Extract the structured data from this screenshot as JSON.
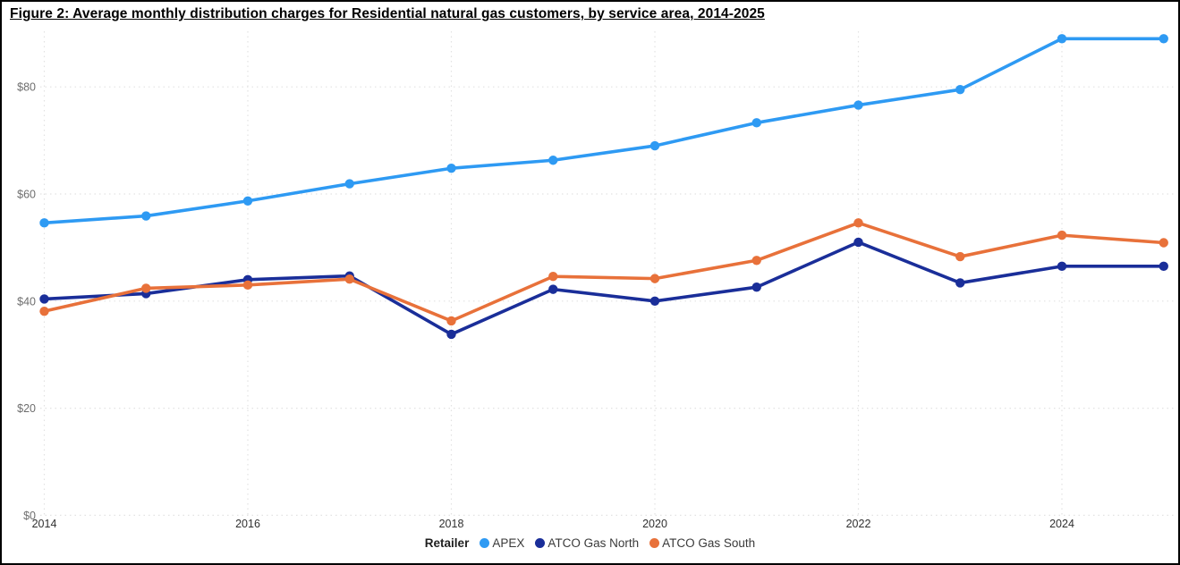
{
  "chart_data": {
    "type": "line",
    "title": "Figure 2: Average monthly distribution charges for Residential natural gas customers, by service area, 2014-2025",
    "x": [
      2014,
      2015,
      2016,
      2017,
      2018,
      2019,
      2020,
      2021,
      2022,
      2023,
      2024,
      2025
    ],
    "series": [
      {
        "name": "APEX",
        "color": "#2E9AF3",
        "values": [
          54.6,
          55.9,
          58.7,
          61.9,
          64.8,
          66.3,
          69.0,
          73.3,
          76.6,
          79.5,
          89.0,
          89.0
        ]
      },
      {
        "name": "ATCO Gas North",
        "color": "#1A2E99",
        "values": [
          40.4,
          41.4,
          44.0,
          44.7,
          33.8,
          42.2,
          40.0,
          42.6,
          51.0,
          43.4,
          46.5,
          46.5
        ]
      },
      {
        "name": "ATCO Gas South",
        "color": "#E8713A",
        "values": [
          38.1,
          42.4,
          43.0,
          44.1,
          36.3,
          44.6,
          44.2,
          47.6,
          54.6,
          48.3,
          52.3,
          50.9
        ]
      }
    ],
    "y_ticks": {
      "values": [
        0,
        20,
        40,
        60,
        80
      ],
      "labels": [
        "$0",
        "$20",
        "$40",
        "$60",
        "$80"
      ]
    },
    "x_ticks": [
      2014,
      2016,
      2018,
      2020,
      2022,
      2024
    ],
    "ylim": [
      0,
      90
    ],
    "grid": "dotted, horizontal and vertical at labeled ticks",
    "legend_position": "bottom-center",
    "legend_title": "Retailer",
    "colors": {
      "grid": "#E2E2E2",
      "y_tick_label": "#6E6E6E",
      "x_tick_label": "#303030",
      "title_text": "#000000",
      "legend_text": "#3A3A3A"
    }
  }
}
